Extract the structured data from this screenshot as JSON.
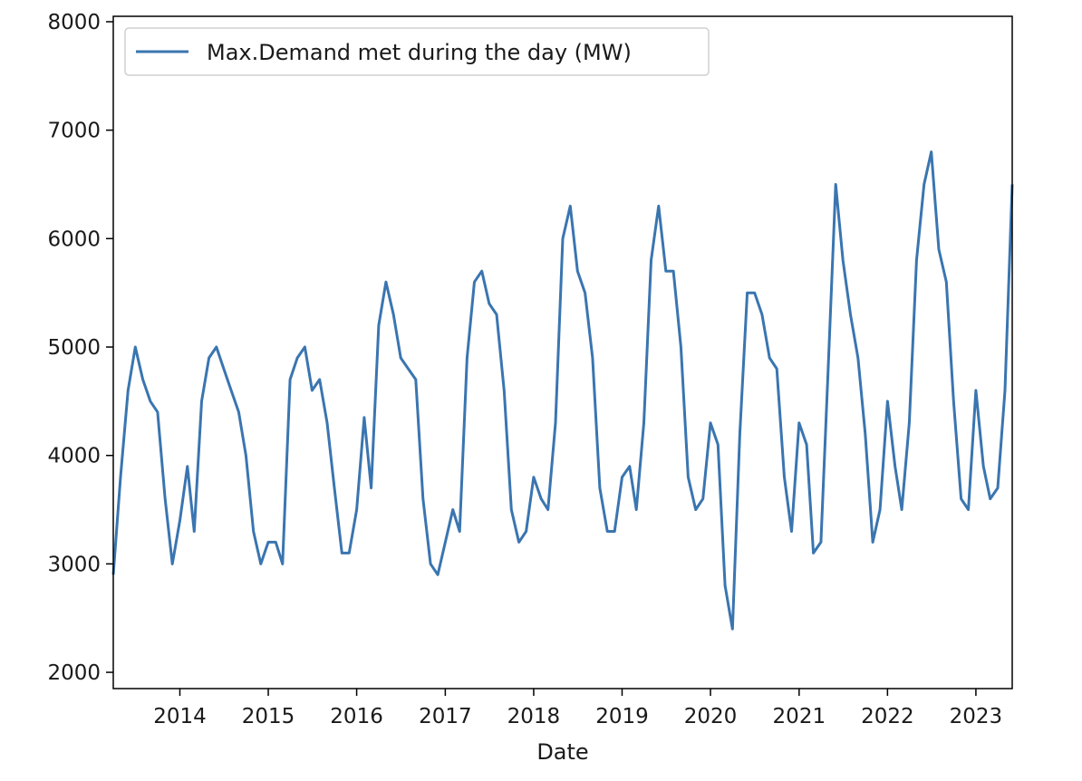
{
  "chart_data": {
    "type": "line",
    "title": "",
    "xlabel": "Date",
    "ylabel": "",
    "x_start": "2013-04-01",
    "x_end": "2023-05-31",
    "ylim": [
      1850,
      8050
    ],
    "yticks": [
      2000,
      3000,
      4000,
      5000,
      6000,
      7000,
      8000
    ],
    "ytick_labels": [
      "2000",
      "3000",
      "4000",
      "5000",
      "6000",
      "7000",
      "8000"
    ],
    "xticks": [
      "2014-01-01",
      "2015-01-01",
      "2016-01-01",
      "2017-01-01",
      "2018-01-01",
      "2019-01-01",
      "2020-01-01",
      "2021-01-01",
      "2022-01-01",
      "2023-01-01"
    ],
    "xtick_labels": [
      "2014",
      "2015",
      "2016",
      "2017",
      "2018",
      "2019",
      "2020",
      "2021",
      "2022",
      "2023"
    ],
    "legend_position": "upper-left",
    "grid": false,
    "series": [
      {
        "name": "Max.Demand met during the day (MW)",
        "color": "#3a75b0",
        "x": [
          "2013-04-01",
          "2013-05-01",
          "2013-06-01",
          "2013-07-01",
          "2013-08-01",
          "2013-09-01",
          "2013-10-01",
          "2013-11-01",
          "2013-12-01",
          "2014-01-01",
          "2014-02-01",
          "2014-03-01",
          "2014-04-01",
          "2014-05-01",
          "2014-06-01",
          "2014-07-01",
          "2014-08-01",
          "2014-09-01",
          "2014-10-01",
          "2014-11-01",
          "2014-12-01",
          "2015-01-01",
          "2015-02-01",
          "2015-03-01",
          "2015-04-01",
          "2015-05-01",
          "2015-06-01",
          "2015-07-01",
          "2015-08-01",
          "2015-09-01",
          "2015-10-01",
          "2015-11-01",
          "2015-12-01",
          "2016-01-01",
          "2016-02-01",
          "2016-03-01",
          "2016-04-01",
          "2016-05-01",
          "2016-06-01",
          "2016-07-01",
          "2016-08-01",
          "2016-09-01",
          "2016-10-01",
          "2016-11-01",
          "2016-12-01",
          "2017-01-01",
          "2017-02-01",
          "2017-03-01",
          "2017-04-01",
          "2017-05-01",
          "2017-06-01",
          "2017-07-01",
          "2017-08-01",
          "2017-09-01",
          "2017-10-01",
          "2017-11-01",
          "2017-12-01",
          "2018-01-01",
          "2018-02-01",
          "2018-03-01",
          "2018-04-01",
          "2018-05-01",
          "2018-06-01",
          "2018-07-01",
          "2018-08-01",
          "2018-09-01",
          "2018-10-01",
          "2018-11-01",
          "2018-12-01",
          "2019-01-01",
          "2019-02-01",
          "2019-03-01",
          "2019-04-01",
          "2019-05-01",
          "2019-06-01",
          "2019-07-01",
          "2019-08-01",
          "2019-09-01",
          "2019-10-01",
          "2019-11-01",
          "2019-12-01",
          "2020-01-01",
          "2020-02-01",
          "2020-03-01",
          "2020-04-01",
          "2020-05-01",
          "2020-06-01",
          "2020-07-01",
          "2020-08-01",
          "2020-09-01",
          "2020-10-01",
          "2020-11-01",
          "2020-12-01",
          "2021-01-01",
          "2021-02-01",
          "2021-03-01",
          "2021-04-01",
          "2021-05-01",
          "2021-06-01",
          "2021-07-01",
          "2021-08-01",
          "2021-09-01",
          "2021-10-01",
          "2021-11-01",
          "2021-12-01",
          "2022-01-01",
          "2022-02-01",
          "2022-03-01",
          "2022-04-01",
          "2022-05-01",
          "2022-06-01",
          "2022-07-01",
          "2022-08-01",
          "2022-09-01",
          "2022-10-01",
          "2022-11-01",
          "2022-12-01",
          "2023-01-01",
          "2023-02-01",
          "2023-03-01",
          "2023-04-01",
          "2023-05-01",
          "2023-05-31"
        ],
        "y": [
          2900,
          3800,
          4600,
          5000,
          4700,
          4500,
          4400,
          3600,
          3000,
          3400,
          3900,
          3300,
          4500,
          4900,
          5000,
          4800,
          4600,
          4400,
          4000,
          3300,
          3000,
          3200,
          3200,
          3000,
          4700,
          4900,
          5000,
          4600,
          4700,
          4300,
          3700,
          3100,
          3100,
          3500,
          4350,
          3700,
          5200,
          5600,
          5300,
          4900,
          4800,
          4700,
          3600,
          3000,
          2900,
          3200,
          3500,
          3300,
          4900,
          5600,
          5700,
          5400,
          5300,
          4600,
          3500,
          3200,
          3300,
          3800,
          3600,
          3500,
          4300,
          6000,
          6300,
          5700,
          5500,
          4900,
          3700,
          3300,
          3300,
          3800,
          3900,
          3500,
          4300,
          5800,
          6300,
          5700,
          5700,
          5000,
          3800,
          3500,
          3600,
          4300,
          4100,
          2800,
          2400,
          4200,
          5500,
          5500,
          5300,
          4900,
          4800,
          3800,
          3300,
          4300,
          4100,
          3100,
          3200,
          4800,
          6500,
          5800,
          5300,
          4900,
          4200,
          3200,
          3500,
          4500,
          3900,
          3500,
          4300,
          5800,
          6500,
          6800,
          5900,
          5600,
          4500,
          3600,
          3500,
          4600,
          3900,
          3600,
          3700,
          4600,
          6500
        ]
      }
    ]
  }
}
